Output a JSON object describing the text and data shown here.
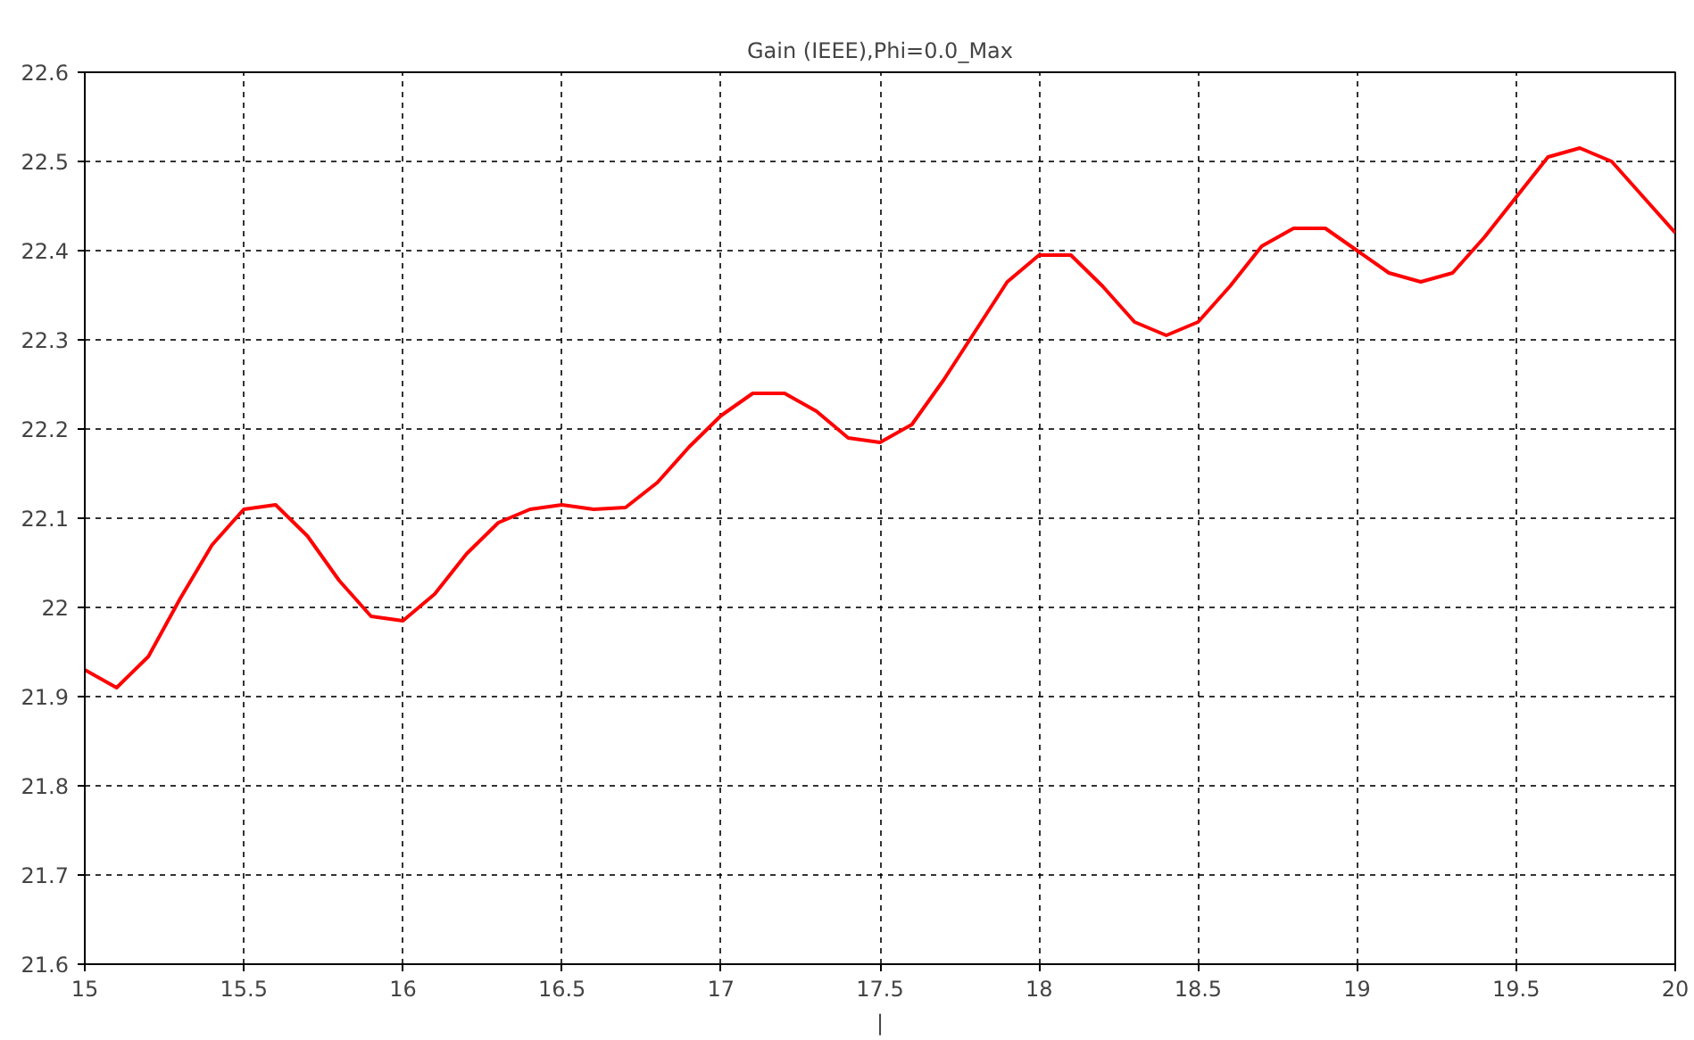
{
  "chart_data": {
    "type": "line",
    "title": "Gain (IEEE),Phi=0.0_Max",
    "xlabel": "|",
    "x": [
      15,
      15.1,
      15.2,
      15.3,
      15.4,
      15.5,
      15.6,
      15.7,
      15.8,
      15.9,
      16,
      16.1,
      16.2,
      16.3,
      16.4,
      16.5,
      16.6,
      16.7,
      16.8,
      16.9,
      17,
      17.1,
      17.2,
      17.3,
      17.4,
      17.5,
      17.6,
      17.7,
      17.8,
      17.9,
      18,
      18.1,
      18.2,
      18.3,
      18.4,
      18.5,
      18.6,
      18.7,
      18.8,
      18.9,
      19,
      19.1,
      19.2,
      19.3,
      19.4,
      19.5,
      19.6,
      19.7,
      19.8,
      19.9,
      20
    ],
    "series": [
      {
        "color": "#ff0000",
        "values": [
          21.93,
          21.91,
          21.945,
          22.01,
          22.07,
          22.11,
          22.115,
          22.08,
          22.03,
          21.99,
          21.985,
          22.015,
          22.06,
          22.095,
          22.11,
          22.115,
          22.11,
          22.112,
          22.14,
          22.18,
          22.215,
          22.24,
          22.24,
          22.22,
          22.19,
          22.185,
          22.205,
          22.255,
          22.31,
          22.365,
          22.395,
          22.395,
          22.36,
          22.32,
          22.305,
          22.32,
          22.36,
          22.405,
          22.425,
          22.425,
          22.4,
          22.375,
          22.365,
          22.375,
          22.415,
          22.46,
          22.505,
          22.515,
          22.5,
          22.46,
          22.42
        ]
      }
    ],
    "xlim": [
      15,
      20
    ],
    "ylim": [
      21.6,
      22.6
    ],
    "xticks": [
      15,
      15.5,
      16,
      16.5,
      17,
      17.5,
      18,
      18.5,
      19,
      19.5,
      20
    ],
    "yticks": [
      21.6,
      21.7,
      21.8,
      21.9,
      22,
      22.1,
      22.2,
      22.3,
      22.4,
      22.5,
      22.6
    ],
    "grid": true,
    "line_style": "solid",
    "marker": "none"
  }
}
